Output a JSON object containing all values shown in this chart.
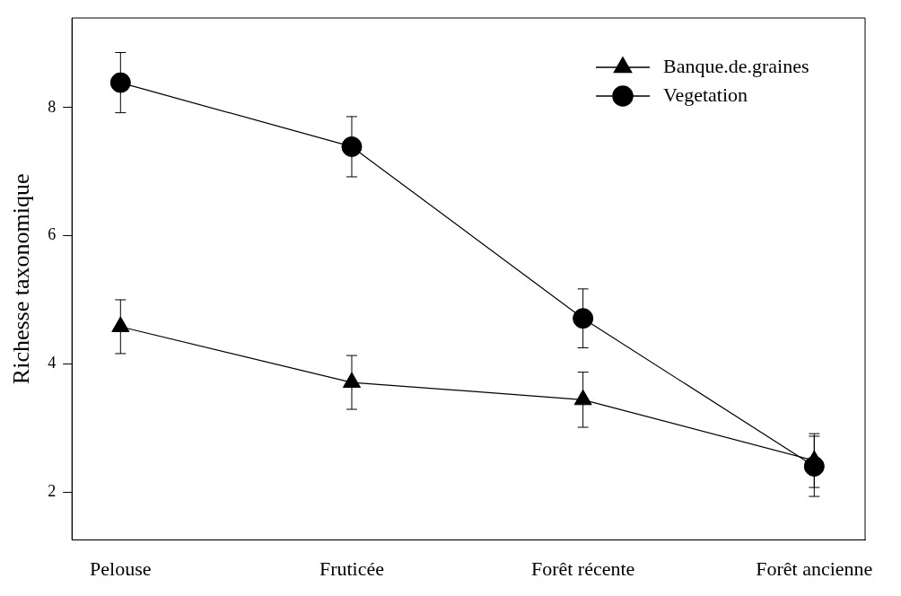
{
  "chart_data": {
    "type": "line",
    "ylabel": "Richesse taxonomique",
    "categories": [
      "Pelouse",
      "Fruticée",
      "Forêt récente",
      "Forêt ancienne"
    ],
    "ylim": [
      1.25,
      9.4
    ],
    "yticks": [
      2,
      4,
      6,
      8
    ],
    "grid": false,
    "legend": "top right",
    "line_style": "solid",
    "series": [
      {
        "name": "Banque.de.graines",
        "color": "#000000",
        "marker": "triangle",
        "values": [
          4.58,
          3.71,
          3.44,
          2.49
        ],
        "errors": [
          0.42,
          0.42,
          0.43,
          0.42
        ]
      },
      {
        "name": "Vegetation",
        "color": "#000000",
        "marker": "circle",
        "values": [
          8.39,
          7.39,
          4.71,
          2.4
        ],
        "errors": [
          0.47,
          0.47,
          0.46,
          0.47
        ]
      }
    ]
  }
}
